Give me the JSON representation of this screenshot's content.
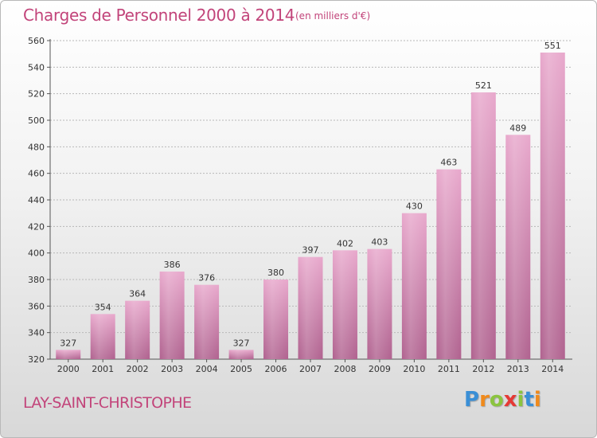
{
  "header": {
    "title": "Charges de Personnel 2000 à 2014",
    "subtitle": "(en milliers d'€)"
  },
  "footer": {
    "commune": "LAY-SAINT-CHRISTOPHE",
    "logo_letters": [
      {
        "ch": "P",
        "color": "#3a8fd6"
      },
      {
        "ch": "r",
        "color": "#f08a1c"
      },
      {
        "ch": "o",
        "color": "#8bc43f"
      },
      {
        "ch": "x",
        "color": "#e53935"
      },
      {
        "ch": "i",
        "color": "#8bc43f"
      },
      {
        "ch": "t",
        "color": "#3a8fd6"
      },
      {
        "ch": "i",
        "color": "#f08a1c"
      }
    ]
  },
  "colors": {
    "title": "#c2447a",
    "bar_top": "#e8a8cc",
    "bar_bottom": "#b0628f",
    "grid": "#b8b8b8"
  },
  "chart_data": {
    "type": "bar",
    "categories": [
      "2000",
      "2001",
      "2002",
      "2003",
      "2004",
      "2005",
      "2006",
      "2007",
      "2008",
      "2009",
      "2010",
      "2011",
      "2012",
      "2013",
      "2014"
    ],
    "values": [
      327,
      354,
      364,
      386,
      376,
      327,
      380,
      397,
      402,
      403,
      430,
      463,
      521,
      489,
      551
    ],
    "title": "Charges de Personnel 2000 à 2014",
    "subtitle": "(en milliers d'€)",
    "ylim": [
      320,
      560
    ],
    "yticks": [
      320,
      340,
      360,
      380,
      400,
      420,
      440,
      460,
      480,
      500,
      520,
      540,
      560
    ],
    "grid": true,
    "legend": "none"
  }
}
